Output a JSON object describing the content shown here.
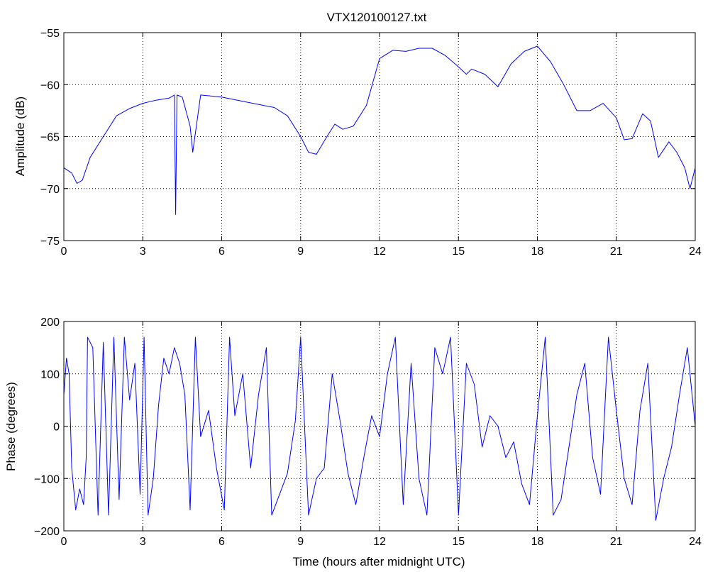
{
  "colors": {
    "series": "#0000ff",
    "axes": "#000000",
    "grid": "#000000",
    "background": "#ffffff"
  },
  "chart_data": [
    {
      "type": "line",
      "title": "VTX120100127.txt",
      "xlabel": "",
      "ylabel": "Amplitude (dB)",
      "xlim": [
        0,
        24
      ],
      "ylim": [
        -75,
        -55
      ],
      "xticks": [
        0,
        3,
        6,
        9,
        12,
        15,
        18,
        21,
        24
      ],
      "yticks": [
        -75,
        -70,
        -65,
        -60,
        -55
      ],
      "xtick_labels": [
        "0",
        "3",
        "6",
        "9",
        "12",
        "15",
        "18",
        "21",
        "24"
      ],
      "ytick_labels": [
        "−75",
        "−70",
        "−65",
        "−60",
        "−55"
      ],
      "grid": true,
      "series": [
        {
          "color": "#0000ff",
          "x": [
            0,
            0.3,
            0.5,
            0.7,
            1.0,
            1.5,
            2.0,
            2.5,
            3.0,
            3.5,
            4.0,
            4.2,
            4.25,
            4.3,
            4.5,
            4.8,
            4.9,
            5.2,
            6.0,
            7.0,
            8.0,
            8.5,
            9.0,
            9.3,
            9.6,
            10.0,
            10.3,
            10.6,
            11.0,
            11.5,
            12.0,
            12.5,
            13.0,
            13.5,
            14.0,
            14.5,
            15.0,
            15.3,
            15.5,
            16.0,
            16.5,
            17.0,
            17.5,
            18.0,
            18.5,
            19.0,
            19.5,
            20.0,
            20.5,
            21.0,
            21.3,
            21.6,
            22.0,
            22.3,
            22.6,
            23.0,
            23.3,
            23.6,
            23.8,
            24.0
          ],
          "y": [
            -68,
            -68.5,
            -69.5,
            -69.2,
            -67,
            -65,
            -63,
            -62.3,
            -61.8,
            -61.5,
            -61.3,
            -61,
            -72.5,
            -61,
            -61.2,
            -64,
            -66.5,
            -61,
            -61.2,
            -61.7,
            -62.2,
            -63,
            -65,
            -66.5,
            -66.7,
            -65,
            -63.8,
            -64.3,
            -64,
            -62,
            -57.5,
            -56.7,
            -56.8,
            -56.5,
            -56.5,
            -57.2,
            -58.3,
            -59,
            -58.5,
            -59,
            -60.2,
            -58,
            -56.8,
            -56.3,
            -57.8,
            -60,
            -62.5,
            -62.5,
            -61.8,
            -63.2,
            -65.3,
            -65.2,
            -62.8,
            -63.5,
            -67,
            -65.5,
            -66.5,
            -68,
            -70,
            -68
          ]
        }
      ]
    },
    {
      "type": "line",
      "title": "",
      "xlabel": "Time (hours after midnight UTC)",
      "ylabel": "Phase (degrees)",
      "xlim": [
        0,
        24
      ],
      "ylim": [
        -200,
        200
      ],
      "xticks": [
        0,
        3,
        6,
        9,
        12,
        15,
        18,
        21,
        24
      ],
      "yticks": [
        -200,
        -100,
        0,
        100,
        200
      ],
      "xtick_labels": [
        "0",
        "3",
        "6",
        "9",
        "12",
        "15",
        "18",
        "21",
        "24"
      ],
      "ytick_labels": [
        "−200",
        "−100",
        "0",
        "100",
        "200"
      ],
      "grid": true,
      "series": [
        {
          "color": "#0000ff",
          "x": [
            0,
            0.1,
            0.2,
            0.3,
            0.45,
            0.6,
            0.75,
            0.85,
            0.9,
            1.1,
            1.3,
            1.5,
            1.7,
            1.9,
            2.1,
            2.3,
            2.5,
            2.7,
            2.9,
            3.05,
            3.2,
            3.4,
            3.6,
            3.8,
            4.0,
            4.2,
            4.4,
            4.6,
            4.8,
            5.0,
            5.2,
            5.5,
            5.8,
            6.1,
            6.3,
            6.5,
            6.8,
            7.1,
            7.4,
            7.7,
            7.9,
            8.2,
            8.5,
            8.8,
            9.0,
            9.3,
            9.6,
            9.9,
            10.2,
            10.5,
            10.8,
            11.1,
            11.4,
            11.7,
            12.0,
            12.3,
            12.6,
            12.9,
            13.2,
            13.5,
            13.8,
            14.1,
            14.4,
            14.7,
            15.0,
            15.3,
            15.6,
            15.9,
            16.2,
            16.5,
            16.8,
            17.1,
            17.4,
            17.7,
            18.0,
            18.3,
            18.6,
            18.9,
            19.2,
            19.5,
            19.8,
            20.1,
            20.4,
            20.7,
            21.0,
            21.3,
            21.6,
            21.9,
            22.2,
            22.5,
            22.8,
            23.1,
            23.4,
            23.7,
            24.0
          ],
          "y": [
            60,
            130,
            100,
            -80,
            -160,
            -120,
            -150,
            -60,
            170,
            150,
            -170,
            160,
            -170,
            170,
            -140,
            170,
            50,
            120,
            -130,
            170,
            -170,
            -100,
            40,
            130,
            100,
            150,
            120,
            60,
            -160,
            170,
            -20,
            30,
            -80,
            -160,
            170,
            20,
            100,
            -80,
            60,
            150,
            -170,
            -130,
            -90,
            10,
            170,
            -170,
            -100,
            -80,
            100,
            10,
            -90,
            -150,
            -60,
            20,
            -20,
            100,
            170,
            -150,
            120,
            -100,
            -170,
            150,
            100,
            170,
            -170,
            120,
            80,
            -40,
            20,
            0,
            -60,
            -30,
            -110,
            -150,
            20,
            170,
            -170,
            -140,
            -40,
            60,
            120,
            -60,
            -130,
            170,
            30,
            -100,
            -150,
            30,
            120,
            -180,
            -100,
            -40,
            60,
            150,
            0
          ]
        }
      ]
    }
  ]
}
